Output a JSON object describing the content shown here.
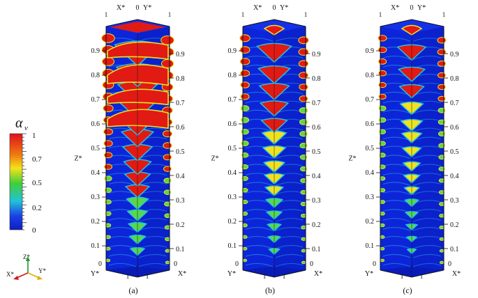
{
  "colorbar": {
    "symbol": "α",
    "subscript": "v",
    "labels": [
      "1",
      "0.7",
      "0.5",
      "0.2",
      "0"
    ],
    "colors": [
      "#e0121a",
      "#f07a10",
      "#f2e21a",
      "#3fce3a",
      "#22c3d8",
      "#1a3fe8",
      "#0d1fc0"
    ]
  },
  "axes": {
    "x": "X*",
    "y": "Y*",
    "z": "Z*",
    "origin": "0",
    "one": "1",
    "ticks": [
      "0.1",
      "0.2",
      "0.3",
      "0.4",
      "0.5",
      "0.6",
      "0.7",
      "0.8",
      "0.9"
    ]
  },
  "triad": {
    "z": "Z*",
    "x": "X*",
    "y": "Y*"
  },
  "panels": [
    {
      "caption": "(a)",
      "level": "high"
    },
    {
      "caption": "(b)",
      "level": "medium"
    },
    {
      "caption": "(c)",
      "level": "low"
    }
  ],
  "colors": {
    "blue": "#0d25d8",
    "red": "#e11a14",
    "cyan": "#23c4e0",
    "green": "#57d84a",
    "yellow": "#f1e21e"
  }
}
